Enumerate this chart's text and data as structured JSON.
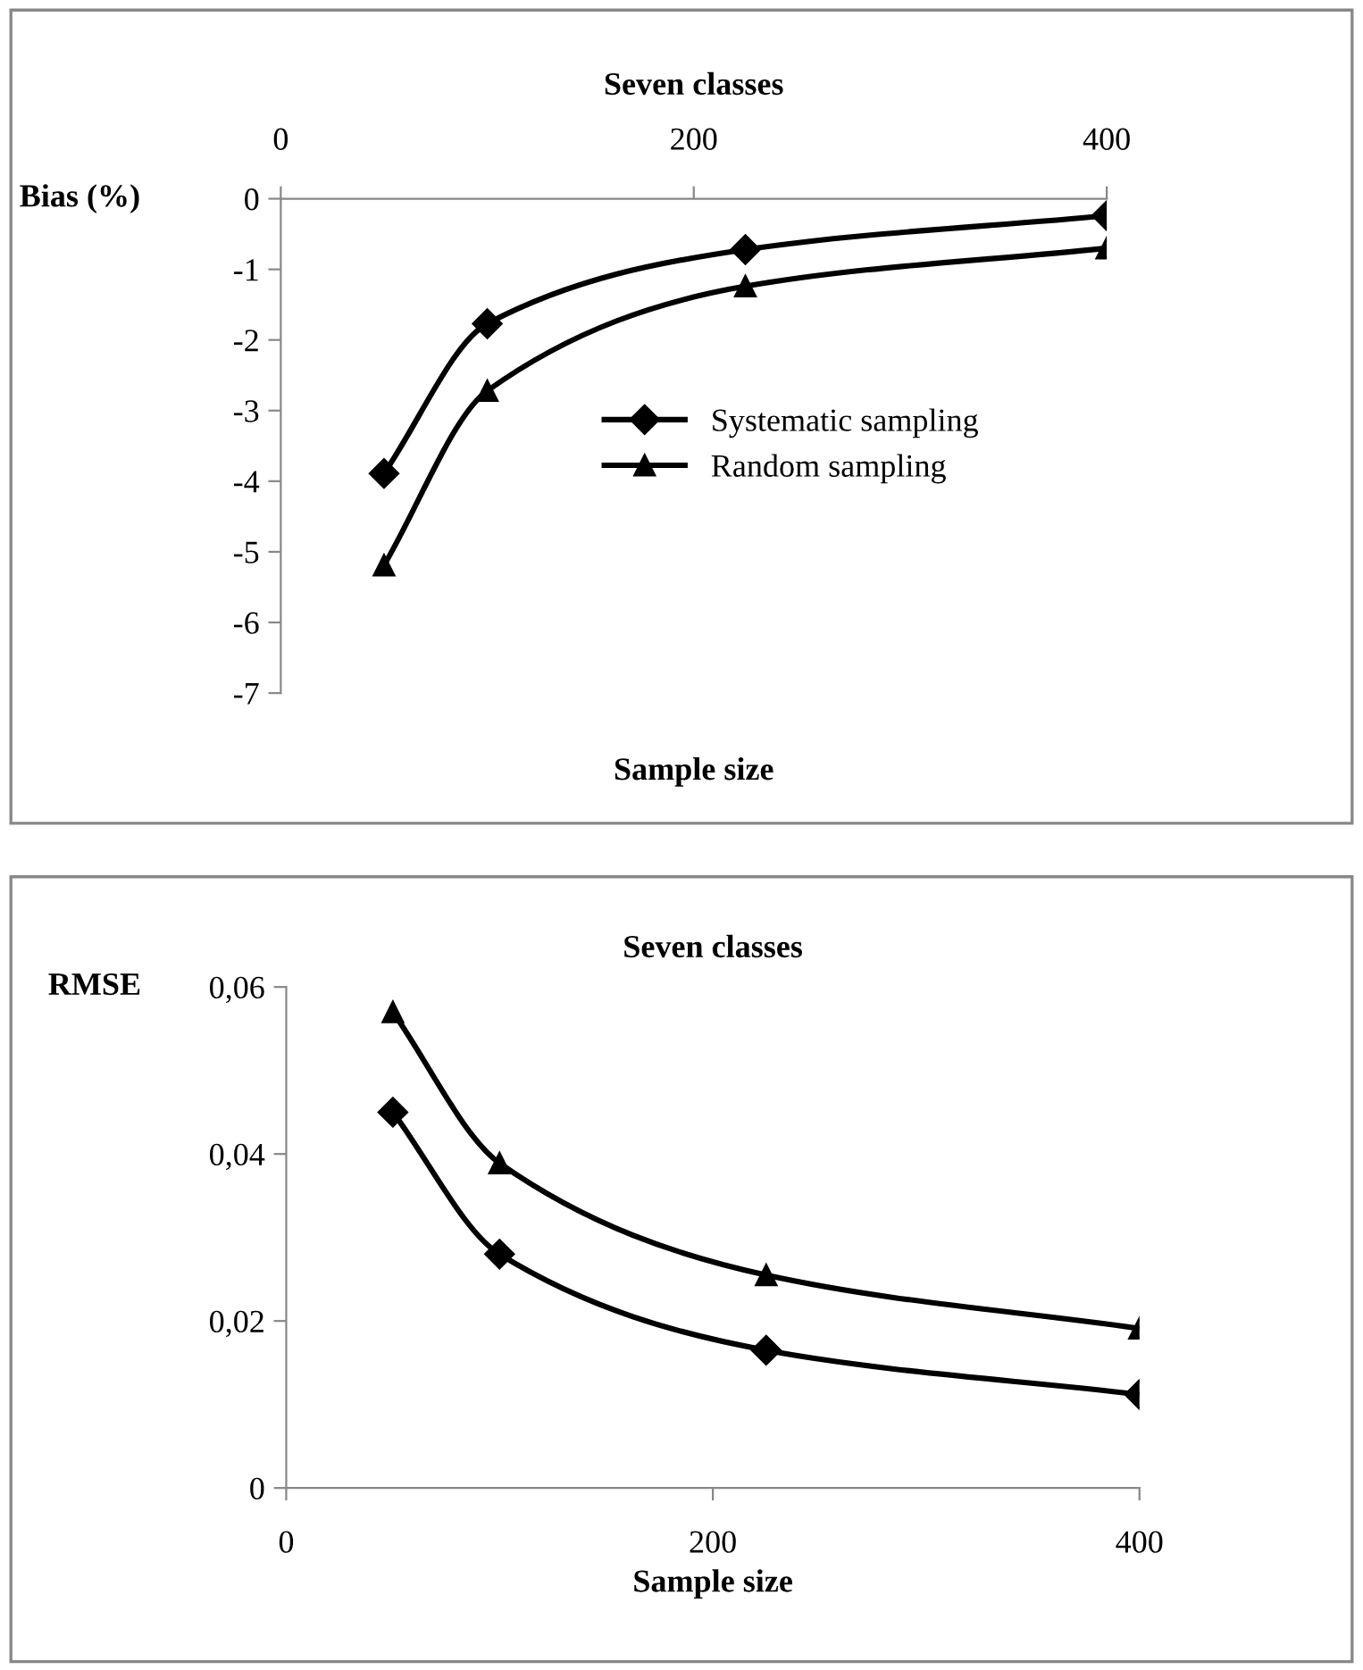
{
  "chart_data": [
    {
      "type": "line",
      "title": "Seven classes",
      "xlabel": "Sample size",
      "ylabel": "Bias (%)",
      "x": [
        50,
        100,
        225,
        400
      ],
      "xlim": [
        0,
        400
      ],
      "xticks": [
        0,
        200,
        400
      ],
      "ylim": [
        -7,
        0
      ],
      "yticks": [
        0,
        -1,
        -2,
        -3,
        -4,
        -5,
        -6,
        -7
      ],
      "grid": false,
      "legend": "center right",
      "series": [
        {
          "name": "Systematic sampling",
          "color": "#000000",
          "marker": "diamond",
          "values": [
            -3.89,
            -1.77,
            -0.72,
            -0.24
          ]
        },
        {
          "name": "Random sampling",
          "color": "#000000",
          "marker": "triangle",
          "values": [
            -5.19,
            -2.72,
            -1.24,
            -0.7
          ]
        }
      ]
    },
    {
      "type": "line",
      "title": "Seven classes",
      "xlabel": "Sample size",
      "ylabel": "RMSE",
      "x": [
        50,
        100,
        225,
        400
      ],
      "xlim": [
        0,
        400
      ],
      "xticks": [
        0,
        200,
        400
      ],
      "ylim": [
        0,
        0.06
      ],
      "yticks": [
        {
          "value": 0,
          "label": "0"
        },
        {
          "value": 0.02,
          "label": "0,02"
        },
        {
          "value": 0.04,
          "label": "0,04"
        },
        {
          "value": 0.06,
          "label": "0,06"
        }
      ],
      "grid": false,
      "legend": false,
      "series": [
        {
          "color": "#000000",
          "marker": "diamond",
          "values": [
            0.045,
            0.028,
            0.0165,
            0.0112
          ]
        },
        {
          "color": "#000000",
          "marker": "triangle",
          "values": [
            0.057,
            0.0389,
            0.0255,
            0.0191
          ]
        }
      ]
    }
  ]
}
